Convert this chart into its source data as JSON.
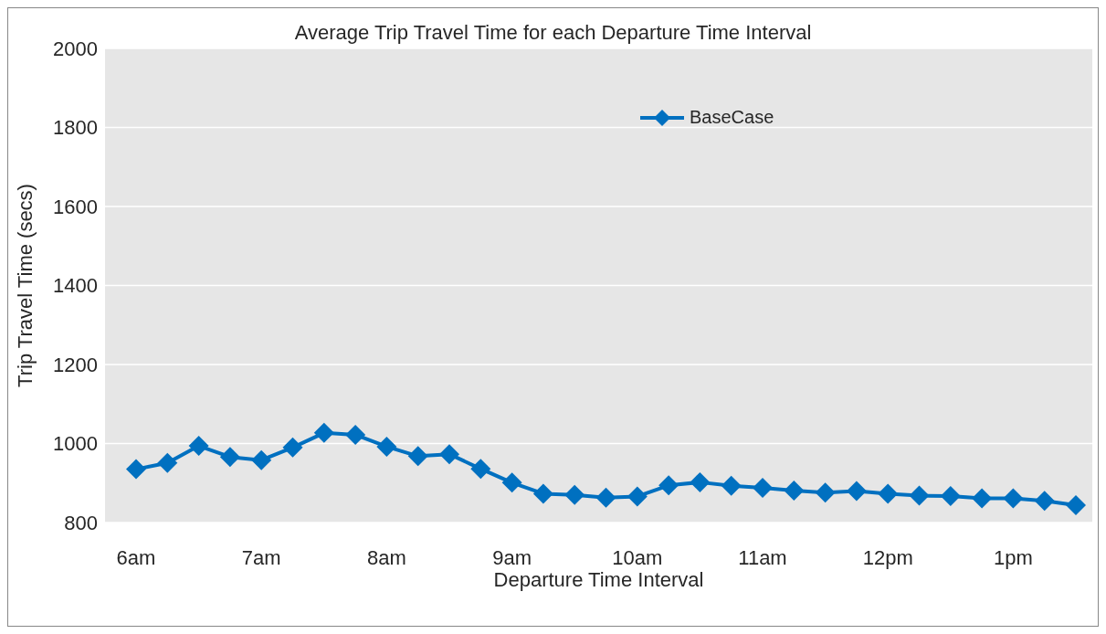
{
  "chart_data": {
    "type": "line",
    "title": "Average Trip Travel Time for each Departure Time Interval",
    "xlabel": "Departure Time Interval",
    "ylabel": "Trip Travel Time (secs)",
    "categories": [
      "6am",
      null,
      null,
      null,
      "7am",
      null,
      null,
      null,
      "8am",
      null,
      null,
      null,
      "9am",
      null,
      null,
      null,
      "10am",
      null,
      null,
      null,
      "11am",
      null,
      null,
      null,
      "12pm",
      null,
      null,
      null,
      "1pm",
      null,
      null
    ],
    "series": [
      {
        "name": "BaseCase",
        "color": "#0070c0",
        "values": [
          935,
          951,
          994,
          966,
          958,
          990,
          1027,
          1022,
          992,
          968,
          973,
          936,
          901,
          873,
          870,
          863,
          866,
          894,
          902,
          893,
          888,
          881,
          876,
          880,
          873,
          868,
          867,
          861,
          861,
          855,
          844
        ]
      }
    ],
    "ylim": [
      800,
      2000
    ],
    "yticks": [
      800,
      1000,
      1200,
      1400,
      1600,
      1800,
      2000
    ],
    "grid": "y",
    "legend": "top",
    "marker": "diamond",
    "line_style": "solid"
  }
}
